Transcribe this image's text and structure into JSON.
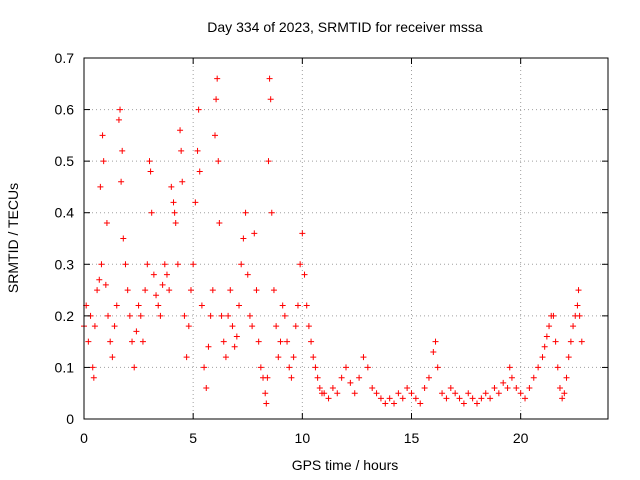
{
  "chart_data": {
    "type": "scatter",
    "title": "Day 334 of 2023, SRMTID for receiver mssa",
    "xlabel": "GPS time / hours",
    "ylabel": "SRMTID / TECUs",
    "xlim": [
      0,
      24
    ],
    "ylim": [
      0,
      0.7
    ],
    "grid": true,
    "marker": "+",
    "color": "#ff0000",
    "x_ticks": [
      0,
      5,
      10,
      15,
      20
    ],
    "x_tick_labels": [
      "0",
      "5",
      "10",
      "15",
      "20"
    ],
    "y_ticks": [
      0,
      0.1,
      0.2,
      0.3,
      0.4,
      0.5,
      0.6,
      0.7
    ],
    "y_tick_labels": [
      "0",
      "0.1",
      "0.2",
      "0.3",
      "0.4",
      "0.5",
      "0.6",
      "0.7"
    ],
    "series": [
      {
        "name": "SRMTID",
        "points": [
          [
            0.0,
            0.18
          ],
          [
            0.1,
            0.22
          ],
          [
            0.2,
            0.15
          ],
          [
            0.3,
            0.2
          ],
          [
            0.4,
            0.1
          ],
          [
            0.45,
            0.08
          ],
          [
            0.5,
            0.18
          ],
          [
            0.6,
            0.25
          ],
          [
            0.7,
            0.27
          ],
          [
            0.75,
            0.45
          ],
          [
            0.8,
            0.3
          ],
          [
            0.85,
            0.55
          ],
          [
            0.9,
            0.5
          ],
          [
            1.0,
            0.26
          ],
          [
            1.05,
            0.38
          ],
          [
            1.1,
            0.2
          ],
          [
            1.2,
            0.15
          ],
          [
            1.3,
            0.12
          ],
          [
            1.4,
            0.18
          ],
          [
            1.5,
            0.22
          ],
          [
            1.6,
            0.58
          ],
          [
            1.65,
            0.6
          ],
          [
            1.7,
            0.46
          ],
          [
            1.75,
            0.52
          ],
          [
            1.8,
            0.35
          ],
          [
            1.9,
            0.3
          ],
          [
            2.0,
            0.25
          ],
          [
            2.1,
            0.2
          ],
          [
            2.2,
            0.15
          ],
          [
            2.3,
            0.1
          ],
          [
            2.4,
            0.17
          ],
          [
            2.5,
            0.22
          ],
          [
            2.6,
            0.2
          ],
          [
            2.7,
            0.15
          ],
          [
            2.8,
            0.25
          ],
          [
            2.9,
            0.3
          ],
          [
            3.0,
            0.5
          ],
          [
            3.05,
            0.48
          ],
          [
            3.1,
            0.4
          ],
          [
            3.2,
            0.28
          ],
          [
            3.3,
            0.24
          ],
          [
            3.4,
            0.22
          ],
          [
            3.5,
            0.2
          ],
          [
            3.6,
            0.26
          ],
          [
            3.7,
            0.3
          ],
          [
            3.8,
            0.28
          ],
          [
            3.9,
            0.25
          ],
          [
            4.0,
            0.45
          ],
          [
            4.1,
            0.42
          ],
          [
            4.15,
            0.4
          ],
          [
            4.2,
            0.38
          ],
          [
            4.3,
            0.3
          ],
          [
            4.4,
            0.56
          ],
          [
            4.45,
            0.52
          ],
          [
            4.5,
            0.46
          ],
          [
            4.6,
            0.2
          ],
          [
            4.7,
            0.12
          ],
          [
            4.8,
            0.18
          ],
          [
            4.9,
            0.25
          ],
          [
            5.0,
            0.3
          ],
          [
            5.1,
            0.42
          ],
          [
            5.2,
            0.52
          ],
          [
            5.25,
            0.6
          ],
          [
            5.3,
            0.48
          ],
          [
            5.4,
            0.22
          ],
          [
            5.5,
            0.1
          ],
          [
            5.6,
            0.06
          ],
          [
            5.7,
            0.14
          ],
          [
            5.8,
            0.2
          ],
          [
            5.9,
            0.25
          ],
          [
            6.0,
            0.55
          ],
          [
            6.05,
            0.62
          ],
          [
            6.1,
            0.66
          ],
          [
            6.15,
            0.5
          ],
          [
            6.2,
            0.38
          ],
          [
            6.3,
            0.2
          ],
          [
            6.4,
            0.15
          ],
          [
            6.5,
            0.12
          ],
          [
            6.6,
            0.2
          ],
          [
            6.7,
            0.25
          ],
          [
            6.8,
            0.18
          ],
          [
            6.9,
            0.14
          ],
          [
            7.0,
            0.16
          ],
          [
            7.1,
            0.22
          ],
          [
            7.2,
            0.3
          ],
          [
            7.3,
            0.35
          ],
          [
            7.4,
            0.4
          ],
          [
            7.5,
            0.28
          ],
          [
            7.6,
            0.2
          ],
          [
            7.7,
            0.18
          ],
          [
            7.8,
            0.36
          ],
          [
            7.9,
            0.25
          ],
          [
            8.0,
            0.15
          ],
          [
            8.1,
            0.1
          ],
          [
            8.2,
            0.08
          ],
          [
            8.3,
            0.05
          ],
          [
            8.35,
            0.03
          ],
          [
            8.4,
            0.08
          ],
          [
            8.45,
            0.5
          ],
          [
            8.5,
            0.66
          ],
          [
            8.55,
            0.62
          ],
          [
            8.6,
            0.4
          ],
          [
            8.7,
            0.25
          ],
          [
            8.8,
            0.18
          ],
          [
            8.9,
            0.12
          ],
          [
            9.0,
            0.15
          ],
          [
            9.1,
            0.22
          ],
          [
            9.2,
            0.2
          ],
          [
            9.3,
            0.15
          ],
          [
            9.4,
            0.1
          ],
          [
            9.5,
            0.08
          ],
          [
            9.6,
            0.12
          ],
          [
            9.7,
            0.18
          ],
          [
            9.8,
            0.22
          ],
          [
            9.9,
            0.3
          ],
          [
            10.0,
            0.36
          ],
          [
            10.1,
            0.28
          ],
          [
            10.2,
            0.22
          ],
          [
            10.3,
            0.18
          ],
          [
            10.4,
            0.15
          ],
          [
            10.5,
            0.12
          ],
          [
            10.6,
            0.1
          ],
          [
            10.7,
            0.08
          ],
          [
            10.8,
            0.06
          ],
          [
            10.9,
            0.05
          ],
          [
            11.0,
            0.05
          ],
          [
            11.2,
            0.04
          ],
          [
            11.4,
            0.06
          ],
          [
            11.6,
            0.05
          ],
          [
            11.8,
            0.08
          ],
          [
            12.0,
            0.1
          ],
          [
            12.2,
            0.07
          ],
          [
            12.4,
            0.05
          ],
          [
            12.6,
            0.08
          ],
          [
            12.8,
            0.12
          ],
          [
            13.0,
            0.1
          ],
          [
            13.2,
            0.06
          ],
          [
            13.4,
            0.05
          ],
          [
            13.6,
            0.04
          ],
          [
            13.8,
            0.03
          ],
          [
            14.0,
            0.04
          ],
          [
            14.2,
            0.03
          ],
          [
            14.4,
            0.05
          ],
          [
            14.6,
            0.04
          ],
          [
            14.8,
            0.06
          ],
          [
            15.0,
            0.05
          ],
          [
            15.2,
            0.04
          ],
          [
            15.4,
            0.03
          ],
          [
            15.6,
            0.06
          ],
          [
            15.8,
            0.08
          ],
          [
            16.0,
            0.13
          ],
          [
            16.1,
            0.15
          ],
          [
            16.2,
            0.1
          ],
          [
            16.4,
            0.05
          ],
          [
            16.6,
            0.04
          ],
          [
            16.8,
            0.06
          ],
          [
            17.0,
            0.05
          ],
          [
            17.2,
            0.04
          ],
          [
            17.4,
            0.03
          ],
          [
            17.6,
            0.05
          ],
          [
            17.8,
            0.04
          ],
          [
            18.0,
            0.03
          ],
          [
            18.2,
            0.04
          ],
          [
            18.4,
            0.05
          ],
          [
            18.6,
            0.04
          ],
          [
            18.8,
            0.06
          ],
          [
            19.0,
            0.05
          ],
          [
            19.2,
            0.07
          ],
          [
            19.4,
            0.06
          ],
          [
            19.5,
            0.1
          ],
          [
            19.6,
            0.08
          ],
          [
            19.8,
            0.06
          ],
          [
            20.0,
            0.05
          ],
          [
            20.2,
            0.04
          ],
          [
            20.4,
            0.06
          ],
          [
            20.6,
            0.08
          ],
          [
            20.8,
            0.1
          ],
          [
            21.0,
            0.12
          ],
          [
            21.1,
            0.14
          ],
          [
            21.2,
            0.16
          ],
          [
            21.3,
            0.18
          ],
          [
            21.4,
            0.2
          ],
          [
            21.5,
            0.2
          ],
          [
            21.6,
            0.15
          ],
          [
            21.7,
            0.1
          ],
          [
            21.8,
            0.06
          ],
          [
            21.9,
            0.04
          ],
          [
            22.0,
            0.05
          ],
          [
            22.1,
            0.08
          ],
          [
            22.2,
            0.12
          ],
          [
            22.3,
            0.15
          ],
          [
            22.4,
            0.18
          ],
          [
            22.5,
            0.2
          ],
          [
            22.6,
            0.22
          ],
          [
            22.65,
            0.25
          ],
          [
            22.7,
            0.2
          ],
          [
            22.8,
            0.15
          ]
        ]
      }
    ]
  }
}
